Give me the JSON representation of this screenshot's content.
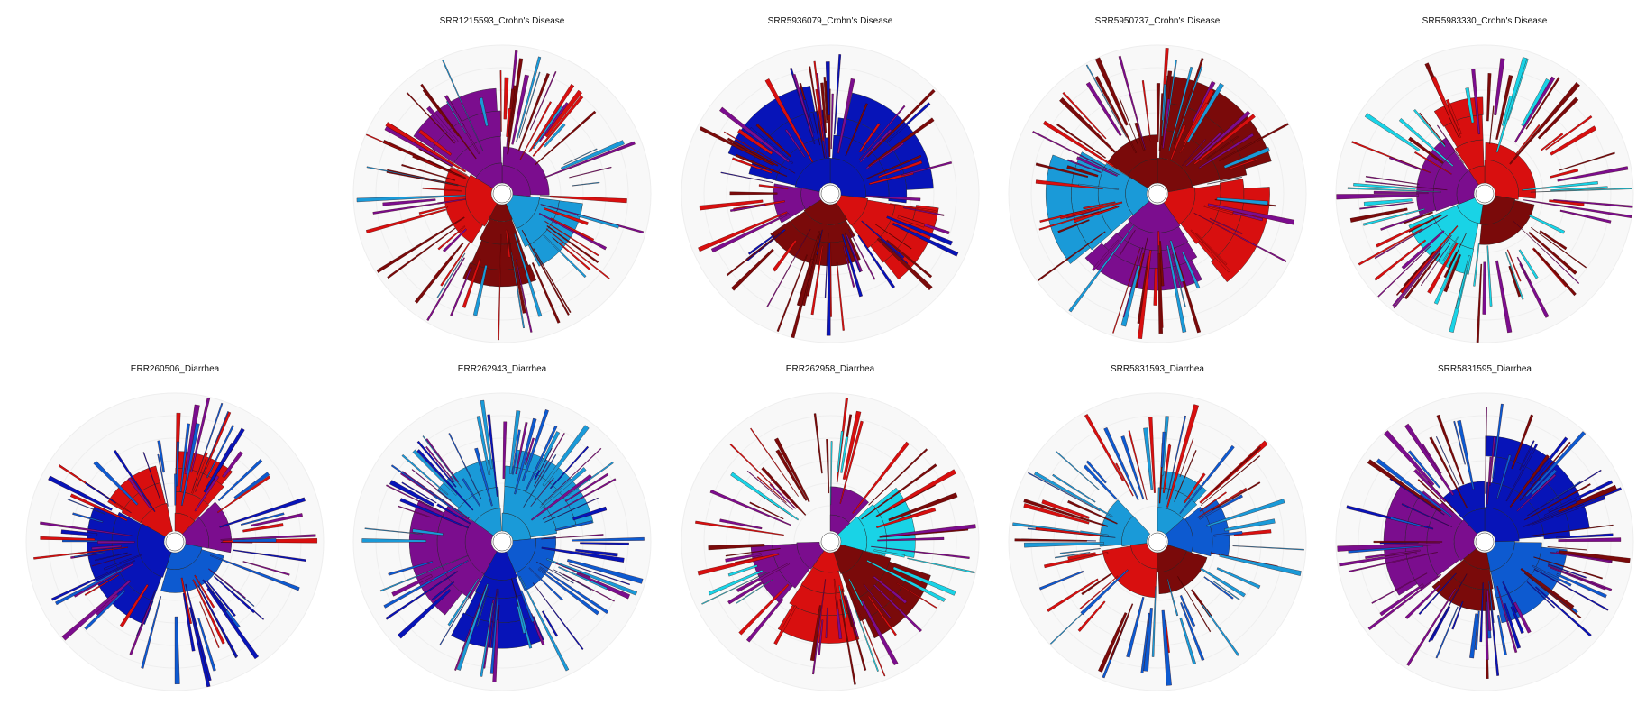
{
  "colors": {
    "dark_red": "#7a0a0a",
    "red": "#d80f0f",
    "purple": "#7b0d8e",
    "cyan": "#19d3e6",
    "light_blue": "#1a9ad8",
    "medium_blue": "#0d5ad0",
    "dark_blue": "#0714b8",
    "background_ring": "#f2f2f2",
    "ring_line": "#ffffff"
  },
  "chart_data": [
    {
      "type": "sunburst",
      "title": "SRR1215593_Crohn's Disease",
      "dominant": [
        "purple",
        "light_blue",
        "dark_red",
        "red"
      ],
      "seed": 11
    },
    {
      "type": "sunburst",
      "title": "SRR5936079_Crohn's Disease",
      "dominant": [
        "dark_blue",
        "red",
        "dark_red",
        "purple"
      ],
      "seed": 23
    },
    {
      "type": "sunburst",
      "title": "SRR5950737_Crohn's Disease",
      "dominant": [
        "dark_red",
        "red",
        "purple",
        "light_blue"
      ],
      "seed": 37
    },
    {
      "type": "sunburst",
      "title": "SRR5983330_Crohn's Disease",
      "dominant": [
        "red",
        "dark_red",
        "cyan",
        "purple"
      ],
      "seed": 41
    },
    {
      "type": "sunburst",
      "title": "ERR260506_Diarrhea",
      "dominant": [
        "red",
        "purple",
        "medium_blue",
        "dark_blue"
      ],
      "seed": 53
    },
    {
      "type": "sunburst",
      "title": "ERR262943_Diarrhea",
      "dominant": [
        "light_blue",
        "medium_blue",
        "dark_blue",
        "purple"
      ],
      "seed": 67
    },
    {
      "type": "sunburst",
      "title": "ERR262958_Diarrhea",
      "dominant": [
        "purple",
        "cyan",
        "dark_red",
        "red"
      ],
      "seed": 71
    },
    {
      "type": "sunburst",
      "title": "SRR5831593_Diarrhea",
      "dominant": [
        "light_blue",
        "medium_blue",
        "dark_red",
        "red"
      ],
      "seed": 83
    },
    {
      "type": "sunburst",
      "title": "SRR5831595_Diarrhea",
      "dominant": [
        "dark_blue",
        "medium_blue",
        "dark_red",
        "purple"
      ],
      "seed": 97
    }
  ]
}
